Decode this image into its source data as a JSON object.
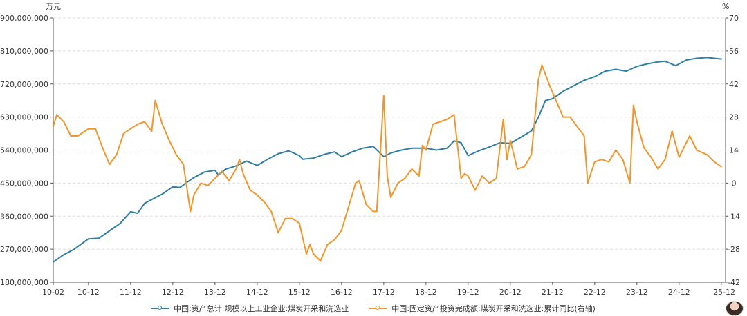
{
  "chart_data": {
    "type": "line",
    "left_unit": "万元",
    "right_unit": "%",
    "left_ylim": [
      180000000,
      900000000
    ],
    "left_ticks": [
      "900,000,000",
      "810,000,000",
      "720,000,000",
      "630,000,000",
      "540,000,000",
      "450,000,000",
      "360,000,000",
      "270,000,000",
      "180,000,000"
    ],
    "right_ylim": [
      -42,
      70
    ],
    "right_ticks": [
      "70",
      "56",
      "42",
      "28",
      "14",
      "0",
      "-14",
      "-28",
      "-42"
    ],
    "x_tick_labels": [
      "10-02",
      "10-12",
      "11-12",
      "12-12",
      "13-12",
      "14-12",
      "15-12",
      "16-12",
      "17-12",
      "18-12",
      "19-12",
      "20-12",
      "21-12",
      "22-12",
      "23-12",
      "24-12",
      "25-12"
    ],
    "x_start": "2010-02",
    "grid": true,
    "legend_position": "bottom",
    "series": [
      {
        "name": "中国:资产总计:规模以上工业企业:煤炭开采和洗选业",
        "axis": "left",
        "color": "#2e7ea6",
        "points": [
          [
            "2010-02",
            235000000
          ],
          [
            "2010-05",
            255000000
          ],
          [
            "2010-08",
            270000000
          ],
          [
            "2010-12",
            298000000
          ],
          [
            "2011-03",
            300000000
          ],
          [
            "2011-06",
            320000000
          ],
          [
            "2011-09",
            340000000
          ],
          [
            "2011-12",
            372000000
          ],
          [
            "2012-02",
            368000000
          ],
          [
            "2012-04",
            395000000
          ],
          [
            "2012-06",
            405000000
          ],
          [
            "2012-09",
            420000000
          ],
          [
            "2012-12",
            440000000
          ],
          [
            "2013-02",
            438000000
          ],
          [
            "2013-04",
            452000000
          ],
          [
            "2013-06",
            465000000
          ],
          [
            "2013-09",
            480000000
          ],
          [
            "2013-12",
            485000000
          ],
          [
            "2014-01",
            472000000
          ],
          [
            "2014-03",
            488000000
          ],
          [
            "2014-06",
            497000000
          ],
          [
            "2014-09",
            510000000
          ],
          [
            "2014-12",
            498000000
          ],
          [
            "2015-03",
            515000000
          ],
          [
            "2015-06",
            530000000
          ],
          [
            "2015-09",
            538000000
          ],
          [
            "2015-12",
            525000000
          ],
          [
            "2016-01",
            515000000
          ],
          [
            "2016-04",
            518000000
          ],
          [
            "2016-07",
            528000000
          ],
          [
            "2016-10",
            535000000
          ],
          [
            "2016-12",
            522000000
          ],
          [
            "2017-03",
            535000000
          ],
          [
            "2017-06",
            545000000
          ],
          [
            "2017-09",
            550000000
          ],
          [
            "2017-12",
            522000000
          ],
          [
            "2018-02",
            532000000
          ],
          [
            "2018-05",
            540000000
          ],
          [
            "2018-08",
            545000000
          ],
          [
            "2018-12",
            545000000
          ],
          [
            "2019-03",
            540000000
          ],
          [
            "2019-06",
            545000000
          ],
          [
            "2019-08",
            565000000
          ],
          [
            "2019-10",
            560000000
          ],
          [
            "2019-12",
            525000000
          ],
          [
            "2020-03",
            538000000
          ],
          [
            "2020-06",
            548000000
          ],
          [
            "2020-09",
            560000000
          ],
          [
            "2020-12",
            558000000
          ],
          [
            "2021-03",
            575000000
          ],
          [
            "2021-06",
            592000000
          ],
          [
            "2021-08",
            630000000
          ],
          [
            "2021-10",
            675000000
          ],
          [
            "2021-12",
            680000000
          ],
          [
            "2022-03",
            700000000
          ],
          [
            "2022-06",
            715000000
          ],
          [
            "2022-09",
            730000000
          ],
          [
            "2022-12",
            740000000
          ],
          [
            "2023-03",
            755000000
          ],
          [
            "2023-06",
            760000000
          ],
          [
            "2023-09",
            755000000
          ],
          [
            "2023-12",
            768000000
          ],
          [
            "2024-03",
            775000000
          ],
          [
            "2024-06",
            780000000
          ],
          [
            "2024-08",
            782000000
          ],
          [
            "2024-11",
            770000000
          ],
          [
            "2025-02",
            785000000
          ],
          [
            "2025-05",
            790000000
          ],
          [
            "2025-08",
            792000000
          ],
          [
            "2025-12",
            788000000
          ]
        ]
      },
      {
        "name": "中国:固定资产投资完成额:煤炭开采和洗选业:累计同比(右轴)",
        "axis": "right",
        "color": "#f0962a",
        "points": [
          [
            "2010-02",
            24
          ],
          [
            "2010-03",
            29
          ],
          [
            "2010-05",
            26
          ],
          [
            "2010-07",
            20
          ],
          [
            "2010-09",
            20
          ],
          [
            "2010-12",
            23
          ],
          [
            "2011-02",
            23
          ],
          [
            "2011-04",
            15
          ],
          [
            "2011-06",
            8
          ],
          [
            "2011-08",
            12
          ],
          [
            "2011-10",
            21
          ],
          [
            "2011-12",
            23
          ],
          [
            "2012-02",
            25
          ],
          [
            "2012-04",
            26
          ],
          [
            "2012-06",
            22
          ],
          [
            "2012-07",
            35
          ],
          [
            "2012-09",
            25
          ],
          [
            "2012-11",
            18
          ],
          [
            "2013-01",
            12
          ],
          [
            "2013-03",
            8
          ],
          [
            "2013-05",
            -12
          ],
          [
            "2013-06",
            -5
          ],
          [
            "2013-08",
            0
          ],
          [
            "2013-10",
            -1
          ],
          [
            "2013-12",
            2
          ],
          [
            "2014-02",
            5
          ],
          [
            "2014-04",
            1
          ],
          [
            "2014-06",
            6
          ],
          [
            "2014-07",
            10
          ],
          [
            "2014-08",
            4
          ],
          [
            "2014-10",
            -3
          ],
          [
            "2014-12",
            -5
          ],
          [
            "2015-02",
            -8
          ],
          [
            "2015-04",
            -12
          ],
          [
            "2015-06",
            -21
          ],
          [
            "2015-08",
            -15
          ],
          [
            "2015-10",
            -15
          ],
          [
            "2015-12",
            -17
          ],
          [
            "2016-02",
            -30
          ],
          [
            "2016-03",
            -26
          ],
          [
            "2016-04",
            -30
          ],
          [
            "2016-06",
            -33
          ],
          [
            "2016-08",
            -26
          ],
          [
            "2016-10",
            -24
          ],
          [
            "2016-12",
            -20
          ],
          [
            "2017-02",
            -10
          ],
          [
            "2017-04",
            0
          ],
          [
            "2017-05",
            1
          ],
          [
            "2017-07",
            -9
          ],
          [
            "2017-09",
            -12
          ],
          [
            "2017-10",
            -12
          ],
          [
            "2017-12",
            37
          ],
          [
            "2018-01",
            3
          ],
          [
            "2018-02",
            -6
          ],
          [
            "2018-04",
            0
          ],
          [
            "2018-06",
            2
          ],
          [
            "2018-08",
            6
          ],
          [
            "2018-10",
            3
          ],
          [
            "2018-11",
            16
          ],
          [
            "2018-12",
            14
          ],
          [
            "2019-02",
            25
          ],
          [
            "2019-04",
            26
          ],
          [
            "2019-06",
            27
          ],
          [
            "2019-08",
            29
          ],
          [
            "2019-10",
            2
          ],
          [
            "2019-11",
            4
          ],
          [
            "2019-12",
            3
          ],
          [
            "2020-02",
            -3
          ],
          [
            "2020-04",
            3
          ],
          [
            "2020-06",
            0
          ],
          [
            "2020-08",
            2
          ],
          [
            "2020-10",
            27
          ],
          [
            "2020-11",
            10
          ],
          [
            "2020-12",
            18
          ],
          [
            "2021-02",
            6
          ],
          [
            "2021-04",
            7
          ],
          [
            "2021-06",
            12
          ],
          [
            "2021-08",
            44
          ],
          [
            "2021-09",
            50
          ],
          [
            "2021-11",
            42
          ],
          [
            "2022-01",
            35
          ],
          [
            "2022-03",
            28
          ],
          [
            "2022-05",
            28
          ],
          [
            "2022-07",
            24
          ],
          [
            "2022-09",
            20
          ],
          [
            "2022-10",
            0
          ],
          [
            "2022-12",
            9
          ],
          [
            "2023-02",
            10
          ],
          [
            "2023-04",
            9
          ],
          [
            "2023-06",
            14
          ],
          [
            "2023-08",
            10
          ],
          [
            "2023-10",
            0
          ],
          [
            "2023-11",
            33
          ],
          [
            "2023-12",
            26
          ],
          [
            "2024-02",
            15
          ],
          [
            "2024-04",
            11
          ],
          [
            "2024-06",
            6
          ],
          [
            "2024-08",
            10
          ],
          [
            "2024-10",
            22
          ],
          [
            "2024-12",
            11
          ],
          [
            "2025-03",
            20
          ],
          [
            "2025-05",
            14
          ],
          [
            "2025-08",
            12
          ],
          [
            "2025-10",
            9
          ],
          [
            "2025-12",
            7
          ]
        ]
      }
    ]
  }
}
